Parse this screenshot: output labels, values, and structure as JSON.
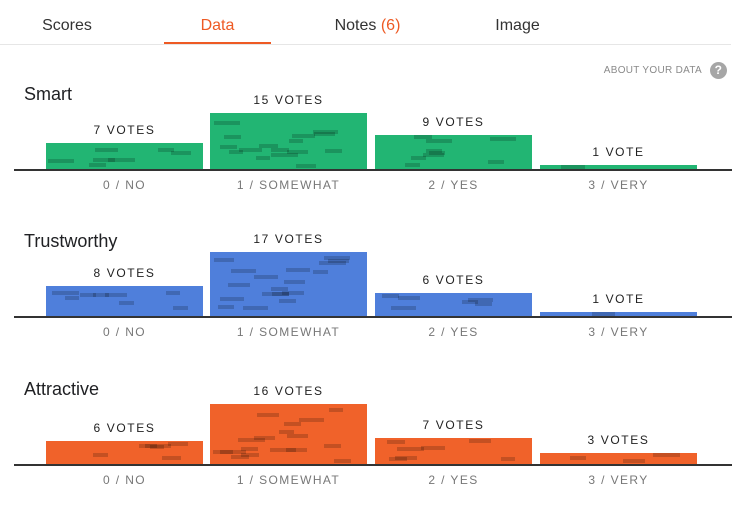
{
  "tabs": [
    {
      "label": "Scores"
    },
    {
      "label": "Data"
    },
    {
      "label": "Notes",
      "count": "(6)"
    },
    {
      "label": "Image"
    }
  ],
  "active_tab": "Data",
  "about_link": "ABOUT YOUR DATA",
  "help_icon": "?",
  "colors": {
    "accent": "#ee5a24",
    "smart": "#22b573",
    "trustworthy": "#4f7fdb",
    "attractive": "#f0622a"
  },
  "sections": [
    {
      "title": "Smart",
      "bars": [
        {
          "category": "0 / NO",
          "votes": 7,
          "label": "7 VOTES"
        },
        {
          "category": "1 / SOMEWHAT",
          "votes": 15,
          "label": "15 VOTES"
        },
        {
          "category": "2 / YES",
          "votes": 9,
          "label": "9 VOTES"
        },
        {
          "category": "3 / VERY",
          "votes": 1,
          "label": "1 VOTE"
        }
      ]
    },
    {
      "title": "Trustworthy",
      "bars": [
        {
          "category": "0 / NO",
          "votes": 8,
          "label": "8 VOTES"
        },
        {
          "category": "1 / SOMEWHAT",
          "votes": 17,
          "label": "17 VOTES"
        },
        {
          "category": "2 / YES",
          "votes": 6,
          "label": "6 VOTES"
        },
        {
          "category": "3 / VERY",
          "votes": 1,
          "label": "1 VOTE"
        }
      ]
    },
    {
      "title": "Attractive",
      "bars": [
        {
          "category": "0 / NO",
          "votes": 6,
          "label": "6 VOTES"
        },
        {
          "category": "1 / SOMEWHAT",
          "votes": 16,
          "label": "16 VOTES"
        },
        {
          "category": "2 / YES",
          "votes": 7,
          "label": "7 VOTES"
        },
        {
          "category": "3 / VERY",
          "votes": 3,
          "label": "3 VOTES"
        }
      ]
    }
  ],
  "chart_data": [
    {
      "type": "bar",
      "title": "Smart",
      "categories": [
        "0 / NO",
        "1 / SOMEWHAT",
        "2 / YES",
        "3 / VERY"
      ],
      "values": [
        7,
        15,
        9,
        1
      ]
    },
    {
      "type": "bar",
      "title": "Trustworthy",
      "categories": [
        "0 / NO",
        "1 / SOMEWHAT",
        "2 / YES",
        "3 / VERY"
      ],
      "values": [
        8,
        17,
        6,
        1
      ]
    },
    {
      "type": "bar",
      "title": "Attractive",
      "categories": [
        "0 / NO",
        "1 / SOMEWHAT",
        "2 / YES",
        "3 / VERY"
      ],
      "values": [
        6,
        16,
        7,
        3
      ]
    }
  ]
}
